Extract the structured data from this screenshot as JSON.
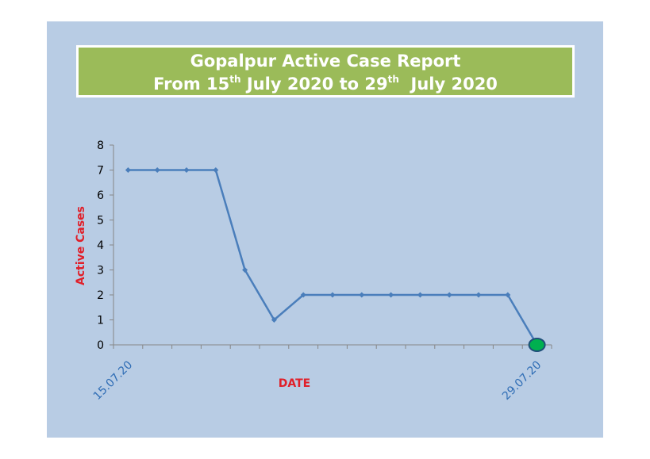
{
  "title": {
    "line1": "Gopalpur Active Case Report",
    "line2_parts": [
      "From 15",
      "th",
      " July 2020 to 29",
      "th",
      "  July 2020"
    ]
  },
  "chart_data": {
    "type": "line",
    "title": "Gopalpur Active Case Report From 15th July 2020 to 29th July 2020",
    "xlabel": "DATE",
    "ylabel": "Active Cases",
    "ylim": [
      0,
      8
    ],
    "yticks": [
      0,
      1,
      2,
      3,
      4,
      5,
      6,
      7,
      8
    ],
    "x": [
      "15.07.20",
      "16.07.20",
      "17.07.20",
      "18.07.20",
      "19.07.20",
      "20.07.20",
      "21.07.20",
      "22.07.20",
      "23.07.20",
      "24.07.20",
      "25.07.20",
      "26.07.20",
      "27.07.20",
      "28.07.20",
      "29.07.20"
    ],
    "x_tick_labels_shown": [
      "15.07.20",
      "29.07.20"
    ],
    "values": [
      7,
      7,
      7,
      7,
      3,
      1,
      2,
      2,
      2,
      2,
      2,
      2,
      2,
      2,
      0
    ],
    "grid": false,
    "legend": "none",
    "highlight_last_point": true
  },
  "colors": {
    "background": "#b8cce4",
    "title_fill": "#9bbb59",
    "line": "#4a7ebb",
    "highlight_point": "#00b050",
    "axis_title": "#e0202a",
    "date_label": "#2f6db5"
  }
}
